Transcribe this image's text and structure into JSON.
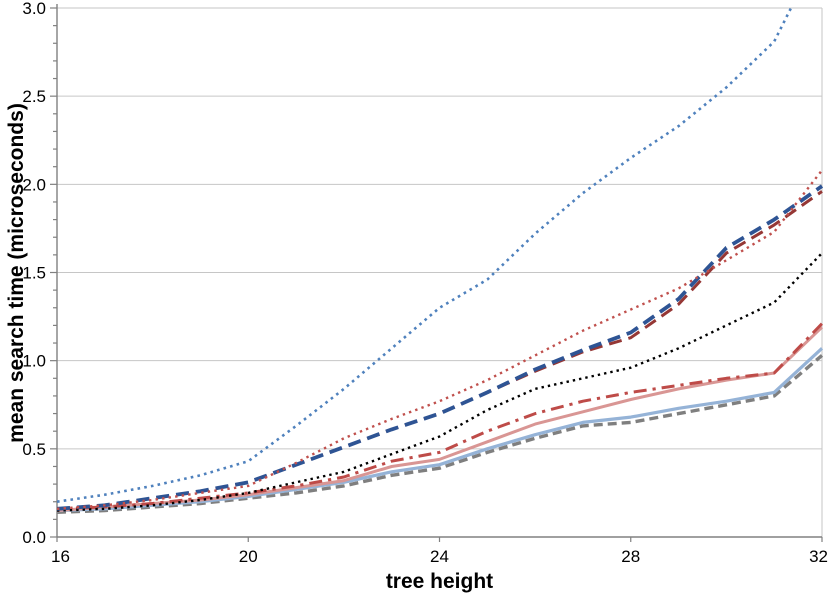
{
  "page": {
    "background": "#FFFFFF"
  },
  "chart_data": {
    "type": "line",
    "title": "",
    "xlabel": "tree height",
    "ylabel": "mean search time (microseconds)",
    "xlim": [
      16,
      32
    ],
    "ylim": [
      0.0,
      3.0
    ],
    "x_ticks": [
      16,
      20,
      24,
      28,
      32
    ],
    "x_tick_labels": [
      "16",
      "20",
      "24",
      "28",
      "32"
    ],
    "y_ticks": [
      0.0,
      0.5,
      1.0,
      1.5,
      2.0,
      2.5,
      3.0
    ],
    "y_tick_labels": [
      "0.0",
      "0.5",
      "1.0",
      "1.5",
      "2.0",
      "2.5",
      "3.0"
    ],
    "y_minor_tick_step": 0.1,
    "grid": "horizontal-major",
    "legend": "none",
    "axis_color": "#808080",
    "grid_color": "#C6C6C6",
    "x": [
      16,
      17,
      18,
      19,
      20,
      21,
      22,
      23,
      24,
      25,
      26,
      27,
      28,
      29,
      30,
      31,
      32
    ],
    "series": [
      {
        "id": "gray-dashed",
        "color": "#7F7F7F",
        "line_style": "dashed",
        "dash": "9 5",
        "width": 3.4,
        "values": [
          0.14,
          0.15,
          0.17,
          0.19,
          0.22,
          0.25,
          0.29,
          0.35,
          0.39,
          0.48,
          0.56,
          0.63,
          0.65,
          0.7,
          0.75,
          0.8,
          1.03
        ]
      },
      {
        "id": "lightblue-solid",
        "color": "#95B3D7",
        "line_style": "solid",
        "dash": "",
        "width": 3.2,
        "values": [
          0.15,
          0.16,
          0.18,
          0.2,
          0.23,
          0.27,
          0.31,
          0.37,
          0.41,
          0.5,
          0.58,
          0.65,
          0.68,
          0.73,
          0.77,
          0.82,
          1.07
        ]
      },
      {
        "id": "salmon-solid",
        "color": "#D99694",
        "line_style": "solid",
        "dash": "",
        "width": 3,
        "values": [
          0.15,
          0.17,
          0.19,
          0.21,
          0.24,
          0.28,
          0.32,
          0.4,
          0.44,
          0.54,
          0.64,
          0.71,
          0.78,
          0.84,
          0.89,
          0.93,
          1.19
        ]
      },
      {
        "id": "red-dashdot",
        "color": "#BE4B48",
        "line_style": "dash-dot",
        "dash": "13 6 3.2 6",
        "width": 3,
        "values": [
          0.16,
          0.17,
          0.19,
          0.22,
          0.25,
          0.29,
          0.34,
          0.43,
          0.48,
          0.6,
          0.7,
          0.77,
          0.82,
          0.86,
          0.9,
          0.93,
          1.21
        ]
      },
      {
        "id": "black-dotted",
        "color": "#000000",
        "line_style": "dotted",
        "dash": "2.4 4",
        "width": 2.4,
        "values": [
          0.15,
          0.16,
          0.18,
          0.21,
          0.25,
          0.31,
          0.37,
          0.47,
          0.57,
          0.72,
          0.84,
          0.9,
          0.96,
          1.07,
          1.2,
          1.33,
          1.61
        ]
      },
      {
        "id": "maroon-dashed",
        "color": "#953735",
        "line_style": "dashed",
        "dash": "13 7",
        "width": 3,
        "values": [
          0.16,
          0.18,
          0.22,
          0.26,
          0.31,
          0.41,
          0.51,
          0.61,
          0.7,
          0.82,
          0.94,
          1.05,
          1.13,
          1.32,
          1.61,
          1.77,
          1.96
        ]
      },
      {
        "id": "navy-dashed",
        "color": "#2E5494",
        "line_style": "dashed",
        "dash": "13 7",
        "width": 3.8,
        "values": [
          0.16,
          0.18,
          0.22,
          0.26,
          0.31,
          0.41,
          0.51,
          0.61,
          0.7,
          0.82,
          0.95,
          1.06,
          1.16,
          1.35,
          1.64,
          1.8,
          1.99
        ]
      },
      {
        "id": "red-dotted",
        "color": "#C0504D",
        "line_style": "dotted",
        "dash": "2.4 4.2",
        "width": 2.4,
        "values": [
          0.16,
          0.18,
          0.21,
          0.25,
          0.29,
          0.42,
          0.56,
          0.67,
          0.77,
          0.89,
          1.03,
          1.17,
          1.29,
          1.41,
          1.57,
          1.73,
          2.08
        ]
      },
      {
        "id": "blue-dotted",
        "color": "#4F81BD",
        "line_style": "dotted",
        "dash": "2.6 4.2",
        "width": 2.6,
        "clipped_at_ymax": true,
        "values": [
          0.2,
          0.24,
          0.29,
          0.35,
          0.43,
          0.63,
          0.84,
          1.07,
          1.3,
          1.46,
          1.72,
          1.95,
          2.15,
          2.33,
          2.55,
          2.81,
          3.35
        ]
      }
    ]
  }
}
